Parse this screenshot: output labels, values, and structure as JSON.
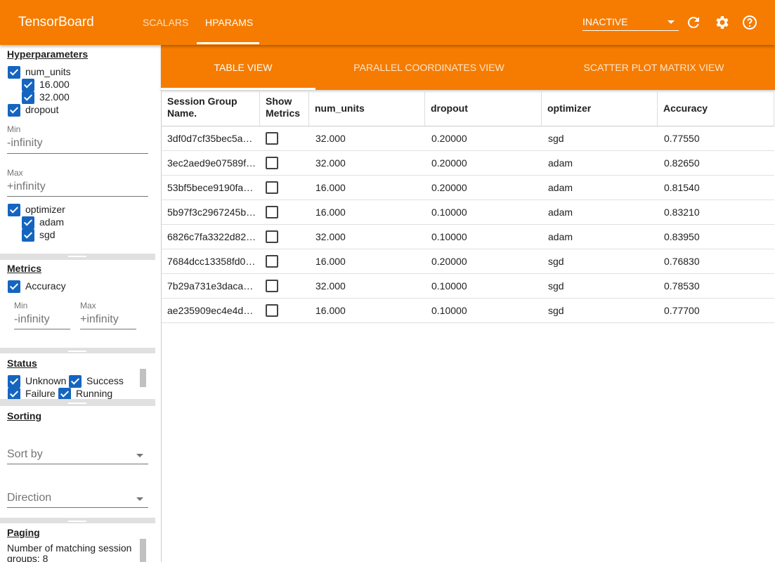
{
  "header": {
    "title": "TensorBoard",
    "tabs": [
      "SCALARS",
      "HPARAMS"
    ],
    "run_state": "INACTIVE"
  },
  "sidebar": {
    "hyperparameters": {
      "title": "Hyperparameters",
      "num_units": {
        "label": "num_units",
        "values": [
          "16.000",
          "32.000"
        ]
      },
      "dropout": {
        "label": "dropout",
        "min_label": "Min",
        "min": "-infinity",
        "max_label": "Max",
        "max": "+infinity"
      },
      "optimizer": {
        "label": "optimizer",
        "values": [
          "adam",
          "sgd"
        ]
      }
    },
    "metrics": {
      "title": "Metrics",
      "accuracy": {
        "label": "Accuracy",
        "min_label": "Min",
        "min": "-infinity",
        "max_label": "Max",
        "max": "+infinity"
      }
    },
    "status": {
      "title": "Status",
      "options": [
        "Unknown",
        "Success",
        "Failure",
        "Running"
      ]
    },
    "sorting": {
      "title": "Sorting",
      "sort_by": "Sort by",
      "direction": "Direction"
    },
    "paging": {
      "title": "Paging",
      "matching": "Number of matching session groups: 8"
    }
  },
  "view_tabs": [
    "TABLE VIEW",
    "PARALLEL COORDINATES VIEW",
    "SCATTER PLOT MATRIX VIEW"
  ],
  "table": {
    "columns": [
      "Session Group Name.",
      "Show Metrics",
      "num_units",
      "dropout",
      "optimizer",
      "Accuracy"
    ],
    "rows": [
      [
        "3df0d7cf35bec5a…",
        "32.000",
        "0.20000",
        "sgd",
        "0.77550"
      ],
      [
        "3ec2aed9e07589f…",
        "32.000",
        "0.20000",
        "adam",
        "0.82650"
      ],
      [
        "53bf5bece9190fa…",
        "16.000",
        "0.20000",
        "adam",
        "0.81540"
      ],
      [
        "5b97f3c2967245b…",
        "16.000",
        "0.10000",
        "adam",
        "0.83210"
      ],
      [
        "6826c7fa3322d82…",
        "32.000",
        "0.10000",
        "adam",
        "0.83950"
      ],
      [
        "7684dcc13358fd0…",
        "16.000",
        "0.20000",
        "sgd",
        "0.76830"
      ],
      [
        "7b29a731e3daca…",
        "32.000",
        "0.10000",
        "sgd",
        "0.78530"
      ],
      [
        "ae235909ec4e4d…",
        "16.000",
        "0.10000",
        "sgd",
        "0.77700"
      ]
    ]
  }
}
